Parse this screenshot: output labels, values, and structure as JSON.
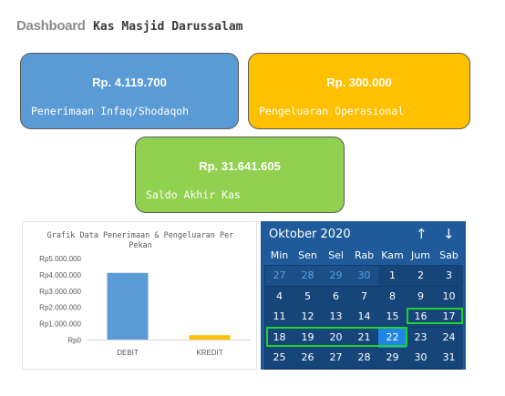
{
  "header": {
    "dashboard": "Dashboard",
    "name": "Kas Masjid Darussalam"
  },
  "cards": {
    "penerimaan": {
      "value": "Rp. 4.119.700",
      "label": "Penerimaan Infaq/Shodaqoh",
      "color": "#5b9bd5"
    },
    "pengeluaran": {
      "value": "Rp. 300.000",
      "label": "Pengeluaran Operasional",
      "color": "#ffc000"
    },
    "saldo": {
      "value": "Rp. 31.641.605",
      "label": "Saldo Akhir Kas",
      "color": "#92d050"
    }
  },
  "chart_data": {
    "type": "bar",
    "title": "Grafik Data Penerimaan & Pengeluaran Per Pekan",
    "title_lines": [
      "Grafik Data Penerimaan & Pengeluaran Per",
      "Pekan"
    ],
    "categories": [
      "DEBIT",
      "KREDIT"
    ],
    "values": [
      4119700,
      300000
    ],
    "colors": [
      "#5b9bd5",
      "#ffc000"
    ],
    "yticks": [
      "Rp0",
      "Rp1.000.000",
      "Rp2.000.000",
      "Rp3.000.000",
      "Rp4.000.000",
      "Rp5.000.000"
    ],
    "ylim": [
      0,
      5000000
    ],
    "xlabel": "",
    "ylabel": "",
    "grid": false
  },
  "calendar": {
    "month": "Oktober 2020",
    "nav_up": "↑",
    "nav_down": "↓",
    "weekdays": [
      "Min",
      "Sen",
      "Sel",
      "Rab",
      "Kam",
      "Jum",
      "Sab"
    ],
    "weeks": [
      [
        "27",
        "28",
        "29",
        "30",
        "1",
        "2",
        "3"
      ],
      [
        "4",
        "5",
        "6",
        "7",
        "8",
        "9",
        "10"
      ],
      [
        "11",
        "12",
        "13",
        "14",
        "15",
        "16",
        "17"
      ],
      [
        "18",
        "19",
        "20",
        "21",
        "22",
        "23",
        "24"
      ],
      [
        "25",
        "26",
        "27",
        "28",
        "29",
        "30",
        "31"
      ]
    ],
    "dim_cells": [
      "0-0",
      "0-1",
      "0-2",
      "0-3"
    ],
    "selected_cell": "3-4"
  }
}
